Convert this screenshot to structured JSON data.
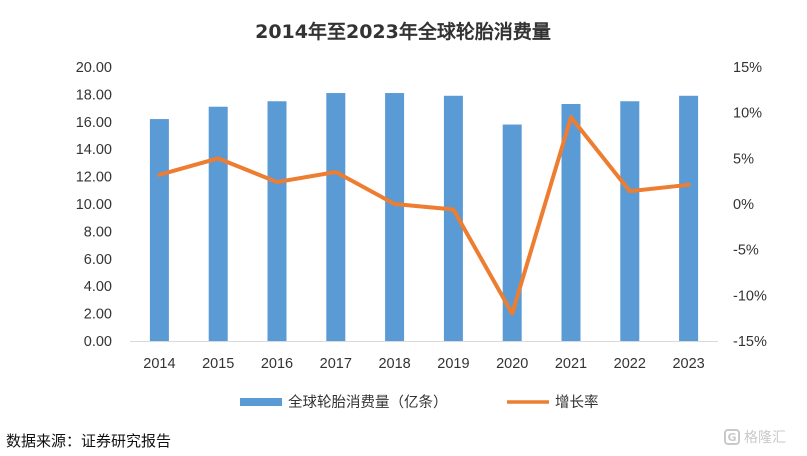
{
  "chart_data": {
    "type": "bar+line",
    "title": "2014年至2023年全球轮胎消费量",
    "categories": [
      "2014",
      "2015",
      "2016",
      "2017",
      "2018",
      "2019",
      "2020",
      "2021",
      "2022",
      "2023"
    ],
    "series": [
      {
        "name": "全球轮胎消费量（亿条）",
        "type": "bar",
        "axis": "left",
        "color": "#5b9bd5",
        "values": [
          16.2,
          17.1,
          17.5,
          18.1,
          18.1,
          17.9,
          15.8,
          17.3,
          17.5,
          17.9
        ]
      },
      {
        "name": "增长率",
        "type": "line",
        "axis": "right",
        "color": "#ed7d31",
        "values": [
          3.2,
          5.0,
          2.4,
          3.5,
          0.0,
          -0.6,
          -12.0,
          9.5,
          1.4,
          2.1
        ]
      }
    ],
    "y_left": {
      "min": 0,
      "max": 20,
      "step": 2,
      "tick_labels": [
        "0.00",
        "2.00",
        "4.00",
        "6.00",
        "8.00",
        "10.00",
        "12.00",
        "14.00",
        "16.00",
        "18.00",
        "20.00"
      ]
    },
    "y_right": {
      "min": -15,
      "max": 15,
      "step": 5,
      "tick_labels": [
        "-15%",
        "-10%",
        "-5%",
        "0%",
        "5%",
        "10%",
        "15%"
      ]
    },
    "grid": false,
    "legend_position": "bottom"
  },
  "footer": {
    "source": "数据来源：证券研究报告",
    "watermark": "格隆汇",
    "watermark_icon": "G"
  }
}
